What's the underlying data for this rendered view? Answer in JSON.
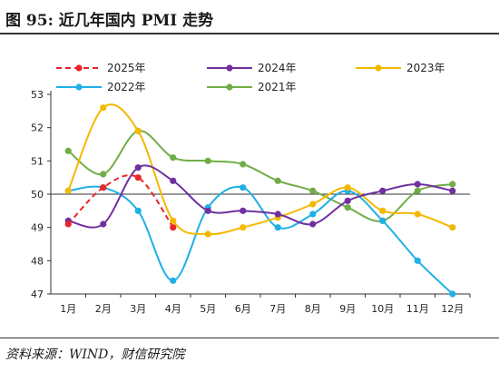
{
  "figure": {
    "title": "图 95:  近几年国内 PMI 走势",
    "source": "资料来源：WIND，财信研究院"
  },
  "chart_data": {
    "type": "line",
    "x": [
      "1月",
      "2月",
      "3月",
      "4月",
      "5月",
      "6月",
      "7月",
      "8月",
      "9月",
      "10月",
      "11月",
      "12月"
    ],
    "ylim": [
      47,
      53
    ],
    "yticks": [
      47,
      48,
      49,
      50,
      51,
      52,
      53
    ],
    "grid": false,
    "legend_position": "top",
    "series": [
      {
        "name": "2025年",
        "color": "#e8262a",
        "dashed": true,
        "values": [
          49.1,
          50.2,
          50.5,
          49.0,
          null,
          null,
          null,
          null,
          null,
          null,
          null,
          null
        ]
      },
      {
        "name": "2024年",
        "color": "#7030a0",
        "dashed": false,
        "values": [
          49.2,
          49.1,
          50.8,
          50.4,
          49.5,
          49.5,
          49.4,
          49.1,
          49.8,
          50.1,
          50.3,
          50.1
        ]
      },
      {
        "name": "2023年",
        "color": "#f5b800",
        "dashed": false,
        "values": [
          50.1,
          52.6,
          51.9,
          49.2,
          48.8,
          49.0,
          49.3,
          49.7,
          50.2,
          49.5,
          49.4,
          49.0
        ]
      },
      {
        "name": "2022年",
        "color": "#1fb0e6",
        "dashed": false,
        "values": [
          50.1,
          50.2,
          49.5,
          47.4,
          49.6,
          50.2,
          49.0,
          49.4,
          50.1,
          49.2,
          48.0,
          47.0
        ]
      },
      {
        "name": "2021年",
        "color": "#70ad47",
        "dashed": false,
        "values": [
          51.3,
          50.6,
          51.9,
          51.1,
          51.0,
          50.9,
          50.4,
          50.1,
          49.6,
          49.2,
          50.1,
          50.3
        ]
      }
    ]
  }
}
